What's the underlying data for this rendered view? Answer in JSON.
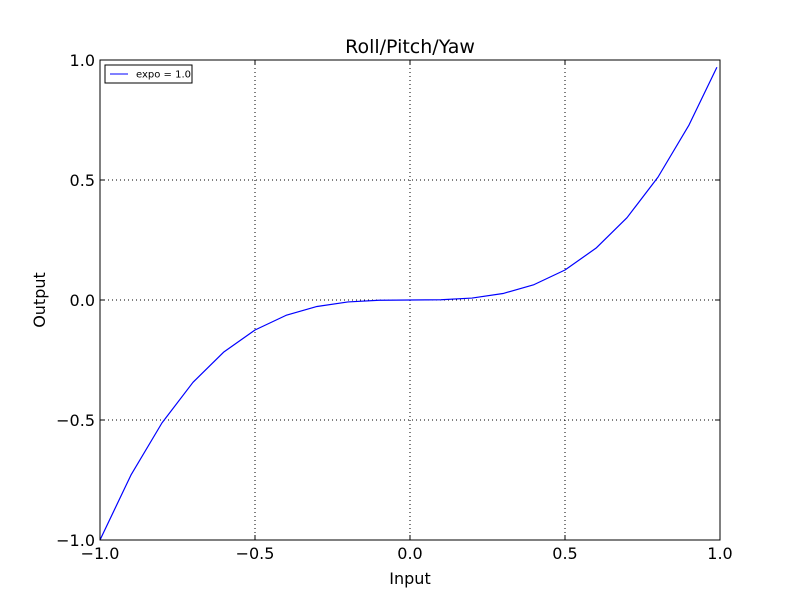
{
  "chart_data": {
    "type": "line",
    "title": "Roll/Pitch/Yaw",
    "xlabel": "Input",
    "ylabel": "Output",
    "xlim": [
      -1.0,
      1.0
    ],
    "ylim": [
      -1.0,
      1.0
    ],
    "xticks": [
      -1.0,
      -0.5,
      0.0,
      0.5,
      1.0
    ],
    "yticks": [
      -1.0,
      -0.5,
      0.0,
      0.5,
      1.0
    ],
    "xtick_labels": [
      "−1.0",
      "−0.5",
      "0.0",
      "0.5",
      "1.0"
    ],
    "ytick_labels": [
      "−1.0",
      "−0.5",
      "0.0",
      "0.5",
      "1.0"
    ],
    "grid": true,
    "legend_position": "top-left",
    "series": [
      {
        "name": "expo = 1.0",
        "color": "#0000ff",
        "x": [
          -1.0,
          -0.9,
          -0.8,
          -0.7,
          -0.6,
          -0.5,
          -0.4,
          -0.3,
          -0.2,
          -0.1,
          0.0,
          0.1,
          0.2,
          0.3,
          0.4,
          0.5,
          0.6,
          0.7,
          0.8,
          0.9,
          0.99
        ],
        "y": [
          -1.0,
          -0.729,
          -0.512,
          -0.343,
          -0.216,
          -0.125,
          -0.064,
          -0.027,
          -0.008,
          -0.001,
          0.0,
          0.001,
          0.008,
          0.027,
          0.064,
          0.125,
          0.216,
          0.343,
          0.512,
          0.729,
          0.97
        ]
      }
    ]
  }
}
